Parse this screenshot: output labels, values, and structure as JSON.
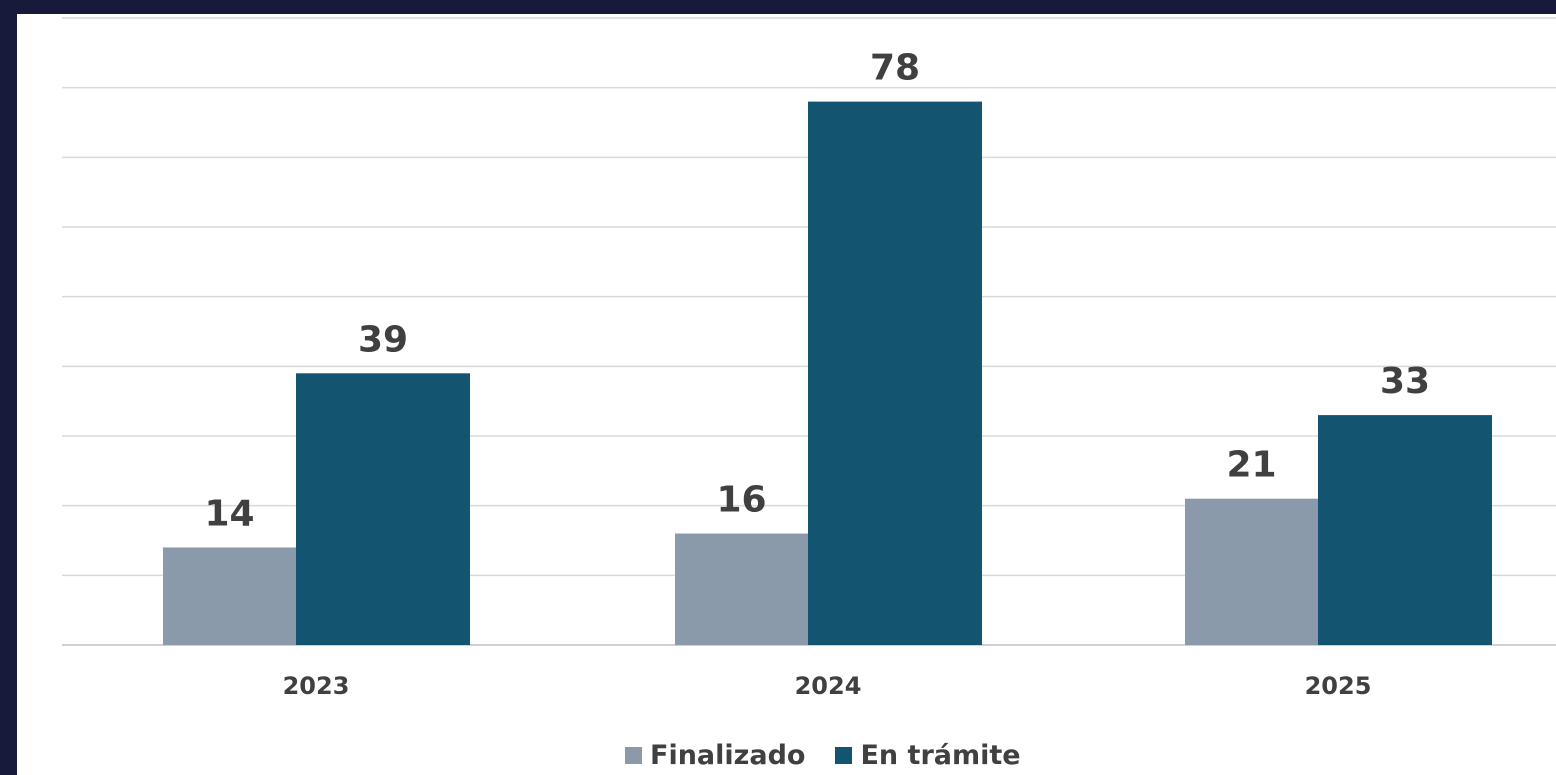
{
  "chart_data": {
    "type": "bar",
    "categories": [
      "2023",
      "2024",
      "2025"
    ],
    "series": [
      {
        "name": "Finalizado",
        "values": [
          14,
          16,
          21
        ],
        "color": "#8a9aab"
      },
      {
        "name": "En trámite",
        "values": [
          39,
          78,
          33
        ],
        "color": "#135471"
      }
    ],
    "ylim": [
      0,
      90
    ],
    "grid": true,
    "legend_position": "bottom-center",
    "data_labels": true,
    "title": "",
    "xlabel": "",
    "ylabel": ""
  },
  "colors": {
    "background": "#171a3b",
    "panel": "#ffffff",
    "gridline": "#d9d9d9",
    "text": "#404040"
  }
}
